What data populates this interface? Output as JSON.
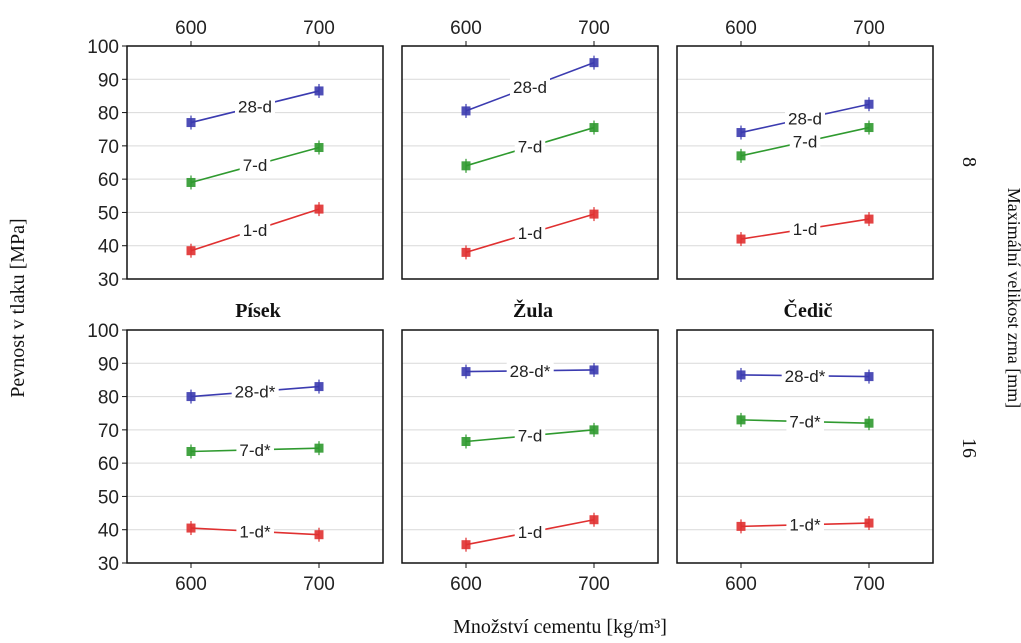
{
  "figure": {
    "ylabel": "Pevnost v tlaku [MPa]",
    "xlabel": "Množství cementu [kg/m³]",
    "right_label": "Maximální velikost zrna [mm]",
    "column_titles": [
      "Písek",
      "Žula",
      "Čedič"
    ],
    "row_labels": [
      "8",
      "16"
    ]
  },
  "colors": {
    "28-d": "#3b3bb0",
    "7-d": "#2f9a2f",
    "1-d": "#e03030"
  },
  "chart_data": [
    {
      "type": "line",
      "row": "8",
      "column": "Písek",
      "x": [
        600,
        700
      ],
      "xlim": [
        550,
        750
      ],
      "ylim": [
        30,
        100
      ],
      "yticks": [
        30,
        40,
        50,
        60,
        70,
        80,
        90,
        100
      ],
      "xticks": [
        600,
        700
      ],
      "grid": true,
      "series": [
        {
          "name": "28-d",
          "values": [
            77,
            86.5
          ]
        },
        {
          "name": "7-d",
          "values": [
            59,
            69.5
          ]
        },
        {
          "name": "1-d",
          "values": [
            38.5,
            51
          ]
        }
      ]
    },
    {
      "type": "line",
      "row": "8",
      "column": "Žula",
      "x": [
        600,
        700
      ],
      "xlim": [
        550,
        750
      ],
      "ylim": [
        30,
        100
      ],
      "yticks": [
        30,
        40,
        50,
        60,
        70,
        80,
        90,
        100
      ],
      "xticks": [
        600,
        700
      ],
      "grid": true,
      "series": [
        {
          "name": "28-d",
          "values": [
            80.5,
            95
          ]
        },
        {
          "name": "7-d",
          "values": [
            64,
            75.5
          ]
        },
        {
          "name": "1-d",
          "values": [
            38,
            49.5
          ]
        }
      ]
    },
    {
      "type": "line",
      "row": "8",
      "column": "Čedič",
      "x": [
        600,
        700
      ],
      "xlim": [
        550,
        750
      ],
      "ylim": [
        30,
        100
      ],
      "yticks": [
        30,
        40,
        50,
        60,
        70,
        80,
        90,
        100
      ],
      "xticks": [
        600,
        700
      ],
      "grid": true,
      "series": [
        {
          "name": "28-d",
          "values": [
            74,
            82.5
          ]
        },
        {
          "name": "7-d",
          "values": [
            67,
            75.5
          ]
        },
        {
          "name": "1-d",
          "values": [
            42,
            48
          ]
        }
      ]
    },
    {
      "type": "line",
      "row": "16",
      "column": "Písek",
      "x": [
        600,
        700
      ],
      "xlim": [
        550,
        750
      ],
      "ylim": [
        30,
        100
      ],
      "yticks": [
        30,
        40,
        50,
        60,
        70,
        80,
        90,
        100
      ],
      "xticks": [
        600,
        700
      ],
      "grid": true,
      "series": [
        {
          "name": "28-d*",
          "values": [
            80,
            83
          ]
        },
        {
          "name": "7-d*",
          "values": [
            63.5,
            64.5
          ]
        },
        {
          "name": "1-d*",
          "values": [
            40.5,
            38.5
          ]
        }
      ]
    },
    {
      "type": "line",
      "row": "16",
      "column": "Žula",
      "x": [
        600,
        700
      ],
      "xlim": [
        550,
        750
      ],
      "ylim": [
        30,
        100
      ],
      "yticks": [
        30,
        40,
        50,
        60,
        70,
        80,
        90,
        100
      ],
      "xticks": [
        600,
        700
      ],
      "grid": true,
      "series": [
        {
          "name": "28-d*",
          "values": [
            87.5,
            88
          ]
        },
        {
          "name": "7-d",
          "values": [
            66.5,
            70
          ]
        },
        {
          "name": "1-d",
          "values": [
            35.5,
            43
          ]
        }
      ]
    },
    {
      "type": "line",
      "row": "16",
      "column": "Čedič",
      "x": [
        600,
        700
      ],
      "xlim": [
        550,
        750
      ],
      "ylim": [
        30,
        100
      ],
      "yticks": [
        30,
        40,
        50,
        60,
        70,
        80,
        90,
        100
      ],
      "xticks": [
        600,
        700
      ],
      "grid": true,
      "series": [
        {
          "name": "28-d*",
          "values": [
            86.5,
            86
          ]
        },
        {
          "name": "7-d*",
          "values": [
            73,
            72
          ]
        },
        {
          "name": "1-d*",
          "values": [
            41,
            42
          ]
        }
      ]
    }
  ]
}
